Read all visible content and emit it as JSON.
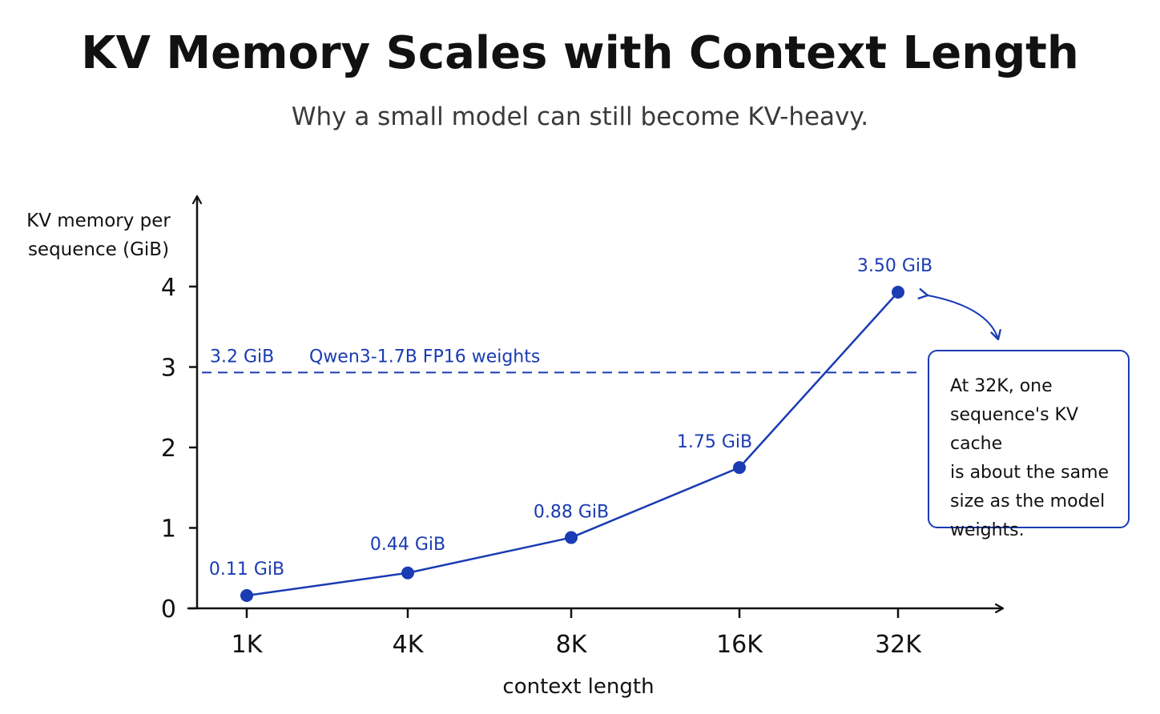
{
  "title": "KV Memory Scales with Context Length",
  "subtitle": "Why a small model can still become KV-heavy.",
  "colors": {
    "series": "#1a3bb3",
    "axis": "#111111",
    "reference": "#1a3bb3"
  },
  "chart_data": {
    "type": "line",
    "categories": [
      "1K",
      "4K",
      "8K",
      "16K",
      "32K"
    ],
    "series": [
      {
        "values": [
          0.11,
          0.44,
          0.88,
          1.75,
          3.5
        ],
        "data_labels": [
          "0.11 GiB",
          "0.44 GiB",
          "0.88 GiB",
          "1.75 GiB",
          "3.50 GiB"
        ]
      }
    ],
    "xlabel": "context length",
    "ylabel": "KV memory per sequence (GiB)",
    "ylim": [
      0,
      4
    ],
    "yticks": [
      0,
      1,
      2,
      3,
      4
    ],
    "grid": false,
    "reference_line": {
      "value": 3.2,
      "value_label": "3.2 GiB",
      "label": "Qwen3-1.7B FP16 weights",
      "style": "dashed"
    },
    "annotation": {
      "text": "At 32K, one sequence's KV cache is about the same size as the model weights.",
      "lines": [
        "At 32K, one",
        "sequence's KV cache",
        "is about the same",
        "size as the model",
        "weights."
      ],
      "points_to": "32K"
    }
  }
}
